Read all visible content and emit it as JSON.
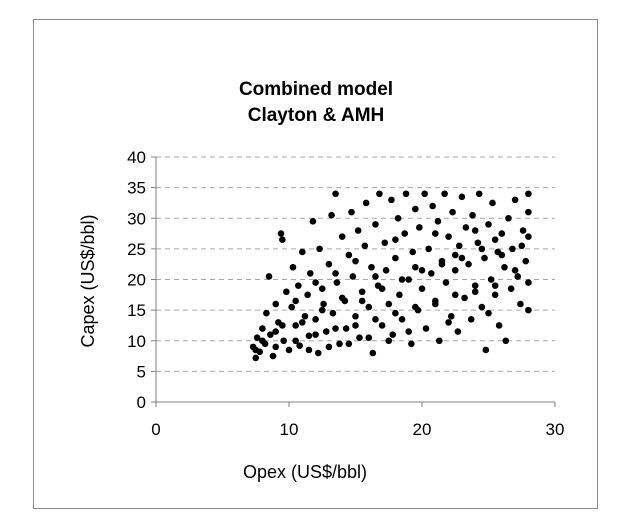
{
  "chart_data": {
    "type": "scatter",
    "title_lines": [
      "Combined model",
      "Clayton & AMH"
    ],
    "xlabel": "Opex (US$/bbl)",
    "ylabel": "Capex (US$/bbl)",
    "xlim": [
      0,
      30
    ],
    "ylim": [
      0,
      40
    ],
    "x_ticks": [
      "0",
      "10",
      "20",
      "30"
    ],
    "y_ticks": [
      "0",
      "5",
      "10",
      "15",
      "20",
      "25",
      "30",
      "35",
      "40"
    ],
    "grid": "horizontal-dashed",
    "legend": "none",
    "marker_color": "#000000",
    "series": [
      {
        "points": [
          [
            7.3,
            9.0
          ],
          [
            7.5,
            7.2
          ],
          [
            7.6,
            10.5
          ],
          [
            7.8,
            8.2
          ],
          [
            8.0,
            12.0
          ],
          [
            8.2,
            9.5
          ],
          [
            8.3,
            14.5
          ],
          [
            8.5,
            20.5
          ],
          [
            8.6,
            11.0
          ],
          [
            8.8,
            7.5
          ],
          [
            9.0,
            16.0
          ],
          [
            9.2,
            13.0
          ],
          [
            9.4,
            27.5
          ],
          [
            9.5,
            26.5
          ],
          [
            9.6,
            10.0
          ],
          [
            9.8,
            18.0
          ],
          [
            10.0,
            8.5
          ],
          [
            10.2,
            15.5
          ],
          [
            10.3,
            22.0
          ],
          [
            10.5,
            12.5
          ],
          [
            10.7,
            19.0
          ],
          [
            10.8,
            9.2
          ],
          [
            11.0,
            24.5
          ],
          [
            11.2,
            14.0
          ],
          [
            11.4,
            17.5
          ],
          [
            11.5,
            10.8
          ],
          [
            11.6,
            21.0
          ],
          [
            11.8,
            29.5
          ],
          [
            12.0,
            13.5
          ],
          [
            12.2,
            8.0
          ],
          [
            12.3,
            25.0
          ],
          [
            12.5,
            18.5
          ],
          [
            12.6,
            16.0
          ],
          [
            12.8,
            11.5
          ],
          [
            13.0,
            22.5
          ],
          [
            13.2,
            30.5
          ],
          [
            13.3,
            14.5
          ],
          [
            13.5,
            34.0
          ],
          [
            13.6,
            19.5
          ],
          [
            13.8,
            9.5
          ],
          [
            14.0,
            27.0
          ],
          [
            14.2,
            16.5
          ],
          [
            14.3,
            12.0
          ],
          [
            14.5,
            24.0
          ],
          [
            14.7,
            31.0
          ],
          [
            14.8,
            20.5
          ],
          [
            15.0,
            14.0
          ],
          [
            15.2,
            28.0
          ],
          [
            15.3,
            10.5
          ],
          [
            15.5,
            18.0
          ],
          [
            15.7,
            25.5
          ],
          [
            15.8,
            32.5
          ],
          [
            16.0,
            15.5
          ],
          [
            16.2,
            22.0
          ],
          [
            16.3,
            8.0
          ],
          [
            16.5,
            29.0
          ],
          [
            16.7,
            19.0
          ],
          [
            16.8,
            34.0
          ],
          [
            17.0,
            12.5
          ],
          [
            17.2,
            26.0
          ],
          [
            17.3,
            21.5
          ],
          [
            17.5,
            16.0
          ],
          [
            17.7,
            33.0
          ],
          [
            17.8,
            11.0
          ],
          [
            18.0,
            23.5
          ],
          [
            18.2,
            30.0
          ],
          [
            18.3,
            17.5
          ],
          [
            18.5,
            13.5
          ],
          [
            18.7,
            27.5
          ],
          [
            18.8,
            34.0
          ],
          [
            19.0,
            20.0
          ],
          [
            19.2,
            9.5
          ],
          [
            19.3,
            24.5
          ],
          [
            19.5,
            31.5
          ],
          [
            19.7,
            15.0
          ],
          [
            19.8,
            28.5
          ],
          [
            20.0,
            18.5
          ],
          [
            20.2,
            34.0
          ],
          [
            20.3,
            12.0
          ],
          [
            20.5,
            25.0
          ],
          [
            20.7,
            21.0
          ],
          [
            20.8,
            32.0
          ],
          [
            21.0,
            16.5
          ],
          [
            21.2,
            29.5
          ],
          [
            21.3,
            10.0
          ],
          [
            21.5,
            23.0
          ],
          [
            21.7,
            34.0
          ],
          [
            21.8,
            19.5
          ],
          [
            22.0,
            27.0
          ],
          [
            22.2,
            14.0
          ],
          [
            22.3,
            31.0
          ],
          [
            22.5,
            21.5
          ],
          [
            22.7,
            11.5
          ],
          [
            22.8,
            25.5
          ],
          [
            23.0,
            33.5
          ],
          [
            23.2,
            17.0
          ],
          [
            23.3,
            28.5
          ],
          [
            23.5,
            22.5
          ],
          [
            23.7,
            13.5
          ],
          [
            23.8,
            30.5
          ],
          [
            24.0,
            19.0
          ],
          [
            24.2,
            26.0
          ],
          [
            24.3,
            34.0
          ],
          [
            24.5,
            15.5
          ],
          [
            24.7,
            23.5
          ],
          [
            24.8,
            8.5
          ],
          [
            25.0,
            29.0
          ],
          [
            25.2,
            20.0
          ],
          [
            25.3,
            32.5
          ],
          [
            25.5,
            17.5
          ],
          [
            25.7,
            24.5
          ],
          [
            25.8,
            12.5
          ],
          [
            26.0,
            27.5
          ],
          [
            26.2,
            22.0
          ],
          [
            26.3,
            10.0
          ],
          [
            26.5,
            30.0
          ],
          [
            26.7,
            18.5
          ],
          [
            26.8,
            25.0
          ],
          [
            27.0,
            33.0
          ],
          [
            27.2,
            20.5
          ],
          [
            27.4,
            16.0
          ],
          [
            27.6,
            28.0
          ],
          [
            27.8,
            23.0
          ],
          [
            28.0,
            34.0
          ],
          [
            28.0,
            15.0
          ],
          [
            28.0,
            27.0
          ],
          [
            28.0,
            19.5
          ],
          [
            28.0,
            31.0
          ],
          [
            9.0,
            11.5
          ],
          [
            10.5,
            16.5
          ],
          [
            12.0,
            19.5
          ],
          [
            13.5,
            21.0
          ],
          [
            15.0,
            23.0
          ],
          [
            16.5,
            20.5
          ],
          [
            18.0,
            26.5
          ],
          [
            19.5,
            22.0
          ],
          [
            21.0,
            27.5
          ],
          [
            22.5,
            24.0
          ],
          [
            24.0,
            28.0
          ],
          [
            25.5,
            26.5
          ],
          [
            8.0,
            10.0
          ],
          [
            9.5,
            12.5
          ],
          [
            11.0,
            13.0
          ],
          [
            12.5,
            15.0
          ],
          [
            14.0,
            17.0
          ],
          [
            15.5,
            16.5
          ],
          [
            17.0,
            18.5
          ],
          [
            18.5,
            20.0
          ],
          [
            20.0,
            21.5
          ],
          [
            21.5,
            22.5
          ],
          [
            23.0,
            23.5
          ],
          [
            24.5,
            25.0
          ],
          [
            26.0,
            24.0
          ],
          [
            27.5,
            25.5
          ],
          [
            7.5,
            8.5
          ],
          [
            9.0,
            9.0
          ],
          [
            10.5,
            10.0
          ],
          [
            12.0,
            11.0
          ],
          [
            13.5,
            12.0
          ],
          [
            15.0,
            12.5
          ],
          [
            16.5,
            13.5
          ],
          [
            18.0,
            14.5
          ],
          [
            19.5,
            15.5
          ],
          [
            21.0,
            16.0
          ],
          [
            22.5,
            17.5
          ],
          [
            24.0,
            18.0
          ],
          [
            25.5,
            19.0
          ],
          [
            27.0,
            21.5
          ],
          [
            13.0,
            9.0
          ],
          [
            16.0,
            10.5
          ],
          [
            19.0,
            11.5
          ],
          [
            22.0,
            13.0
          ],
          [
            25.0,
            14.5
          ],
          [
            11.5,
            8.5
          ],
          [
            14.5,
            9.5
          ],
          [
            17.5,
            10.0
          ]
        ]
      }
    ]
  }
}
